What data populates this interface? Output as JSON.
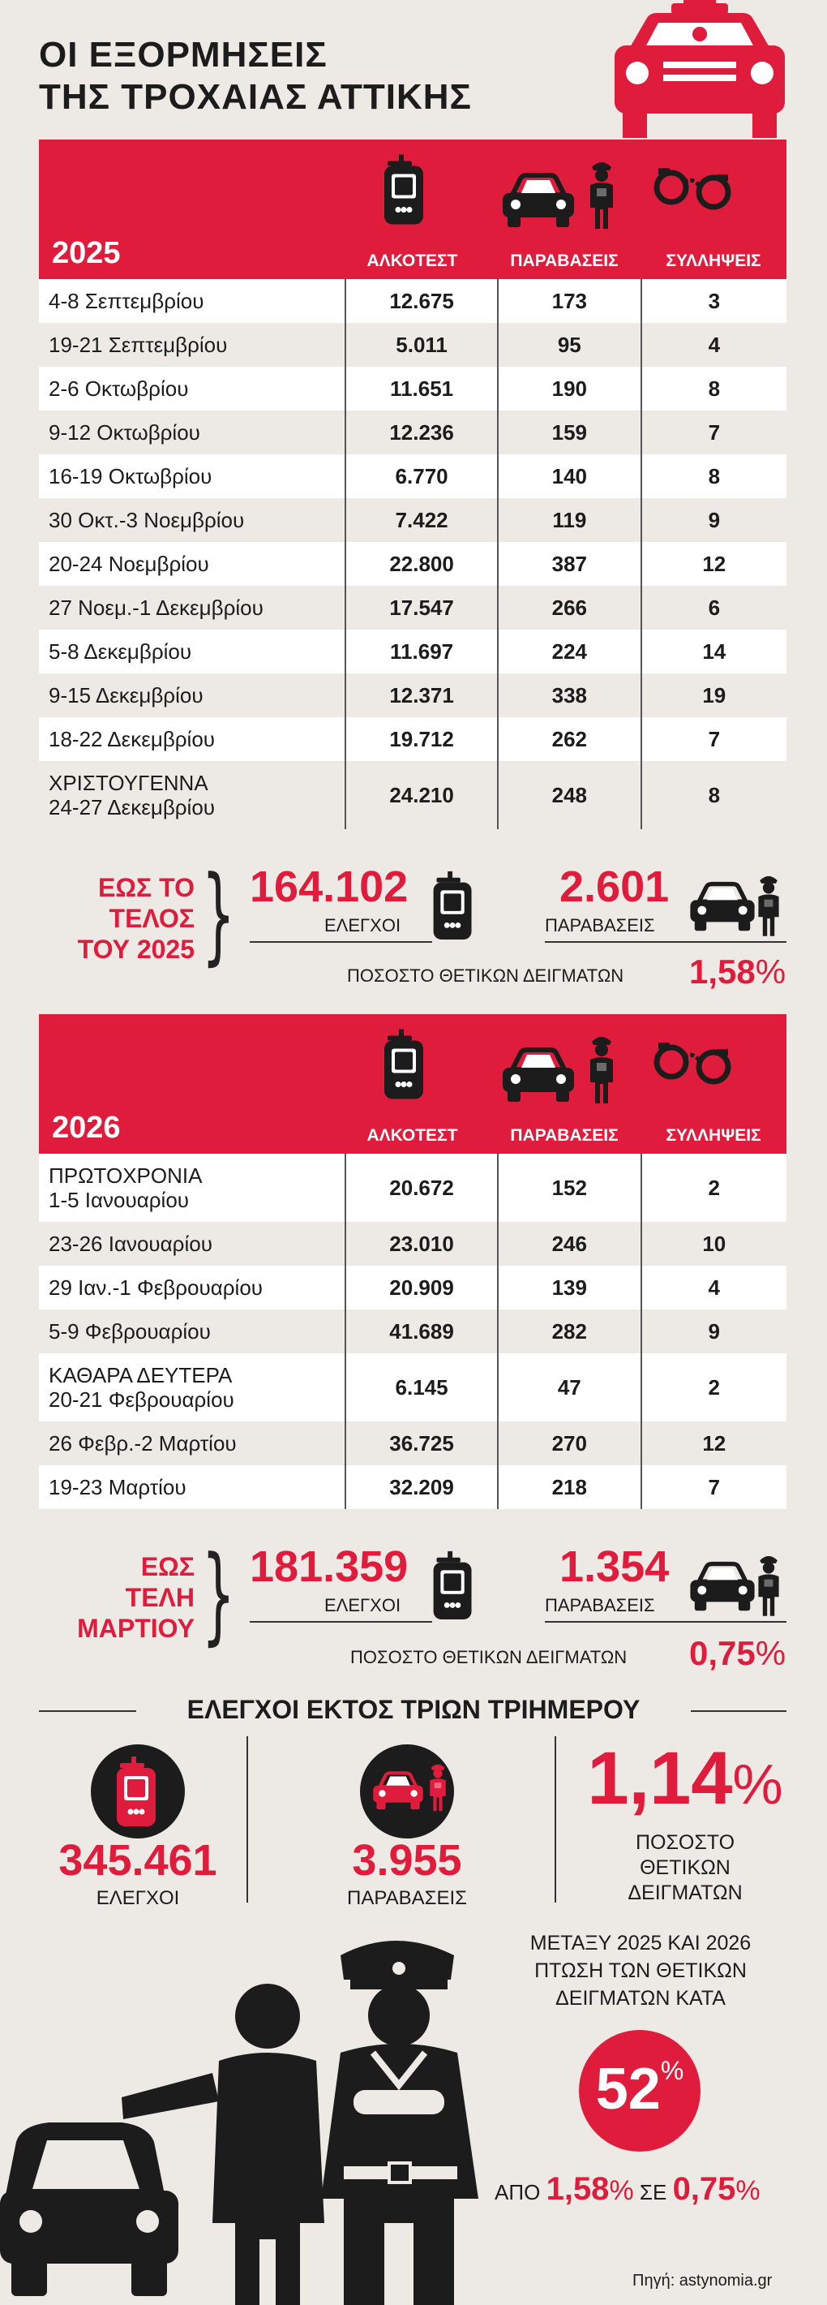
{
  "title": [
    "ΟΙ ΕΞΟΡΜΗΣΕΙΣ",
    "ΤΗΣ ΤΡΟΧΑΙΑΣ ΑΤΤΙΚΗΣ"
  ],
  "columns": {
    "alcotest": "ΑΛΚΟΤΕΣΤ",
    "violations": "ΠΑΡΑΒΑΣΕΙΣ",
    "arrests": "ΣΥΛΛΗΨΕΙΣ"
  },
  "y2025": {
    "year": "2025",
    "rows": [
      {
        "date": "4-8 Σεπτεμβρίου",
        "alco": "12.675",
        "viol": "173",
        "arr": "3"
      },
      {
        "date": "19-21 Σεπτεμβρίου",
        "alco": "5.011",
        "viol": "95",
        "arr": "4"
      },
      {
        "date": "2-6 Οκτωβρίου",
        "alco": "11.651",
        "viol": "190",
        "arr": "8"
      },
      {
        "date": "9-12 Οκτωβρίου",
        "alco": "12.236",
        "viol": "159",
        "arr": "7"
      },
      {
        "date": "16-19 Οκτωβρίου",
        "alco": "6.770",
        "viol": "140",
        "arr": "8"
      },
      {
        "date": "30 Οκτ.-3 Νοεμβρίου",
        "alco": "7.422",
        "viol": "119",
        "arr": "9"
      },
      {
        "date": "20-24 Νοεμβρίου",
        "alco": "22.800",
        "viol": "387",
        "arr": "12"
      },
      {
        "date": "27 Νοεμ.-1 Δεκεμβρίου",
        "alco": "17.547",
        "viol": "266",
        "arr": "6"
      },
      {
        "date": "5-8 Δεκεμβρίου",
        "alco": "11.697",
        "viol": "224",
        "arr": "14"
      },
      {
        "date": "9-15 Δεκεμβρίου",
        "alco": "12.371",
        "viol": "338",
        "arr": "19"
      },
      {
        "date": "18-22 Δεκεμβρίου",
        "alco": "19.712",
        "viol": "262",
        "arr": "7"
      },
      {
        "date": "ΧΡΙΣΤΟΥΓΕΝΝΑ",
        "date2": "24-27 Δεκεμβρίου",
        "alco": "24.210",
        "viol": "248",
        "arr": "8"
      }
    ],
    "summary": {
      "label": [
        "ΕΩΣ ΤΟ",
        "ΤΕΛΟΣ",
        "ΤΟΥ 2025"
      ],
      "checks": "164.102",
      "checks_label": "ΕΛΕΓΧΟΙ",
      "violations": "2.601",
      "violations_label": "ΠΑΡΑΒΑΣΕΙΣ",
      "positive_label": "ΠΟΣΟΣΤΟ ΘΕΤΙΚΩΝ ΔΕΙΓΜΑΤΩΝ",
      "positive_num": "1,58",
      "pct": "%"
    }
  },
  "y2026": {
    "year": "2026",
    "rows": [
      {
        "date": "ΠΡΩΤΟΧΡΟΝΙΑ",
        "date2": "1-5 Ιανουαρίου",
        "alco": "20.672",
        "viol": "152",
        "arr": "2"
      },
      {
        "date": "23-26 Ιανουαρίου",
        "alco": "23.010",
        "viol": "246",
        "arr": "10"
      },
      {
        "date": "29 Ιαν.-1 Φεβρουαρίου",
        "alco": "20.909",
        "viol": "139",
        "arr": "4"
      },
      {
        "date": "5-9 Φεβρουαρίου",
        "alco": "41.689",
        "viol": "282",
        "arr": "9"
      },
      {
        "date": "ΚΑΘΑΡΑ ΔΕΥΤΕΡΑ",
        "date2": "20-21 Φεβρουαρίου",
        "alco": "6.145",
        "viol": "47",
        "arr": "2"
      },
      {
        "date": "26 Φεβρ.-2 Μαρτίου",
        "alco": "36.725",
        "viol": "270",
        "arr": "12"
      },
      {
        "date": "19-23 Μαρτίου",
        "alco": "32.209",
        "viol": "218",
        "arr": "7"
      }
    ],
    "summary": {
      "label": [
        "ΕΩΣ",
        "ΤΕΛΗ",
        "ΜΑΡΤΙΟΥ"
      ],
      "checks": "181.359",
      "checks_label": "ΕΛΕΓΧΟΙ",
      "violations": "1.354",
      "violations_label": "ΠΑΡΑΒΑΣΕΙΣ",
      "positive_label": "ΠΟΣΟΣΤΟ ΘΕΤΙΚΩΝ ΔΕΙΓΜΑΤΩΝ",
      "positive_num": "0,75",
      "pct": "%"
    }
  },
  "outside": {
    "heading": "ΕΛΕΓΧΟΙ ΕΚΤΟΣ ΤΡΙΩΝ ΤΡΙΗΜΕΡΟΥ",
    "checks": "345.461",
    "checks_label": "ΕΛΕΓΧΟΙ",
    "violations": "3.955",
    "violations_label": "ΠΑΡΑΒΑΣΕΙΣ",
    "positive_num": "1,14",
    "pct": "%",
    "positive_label": [
      "ΠΟΣΟΣΤΟ",
      "ΘΕΤΙΚΩΝ",
      "ΔΕΙΓΜΑΤΩΝ"
    ]
  },
  "drop": {
    "text": [
      "ΜΕΤΑΞΥ 2025 ΚΑΙ 2026",
      "ΠΤΩΣΗ ΤΩΝ ΘΕΤΙΚΩΝ",
      "ΔΕΙΓΜΑΤΩΝ ΚΑΤΑ"
    ],
    "value": "52",
    "pct": "%",
    "from_label": "ΑΠΟ",
    "from": "1,58",
    "to_label": "ΣΕ",
    "to": "0,75"
  },
  "source": "Πηγή: astynomia.gr",
  "colors": {
    "accent": "#e01c3c",
    "dark": "#1c1c1c",
    "bg": "#edeae5"
  },
  "icons": [
    "breathalyzer-icon",
    "car-icon",
    "police-officer-icon",
    "handcuffs-icon",
    "police-car-icon"
  ]
}
